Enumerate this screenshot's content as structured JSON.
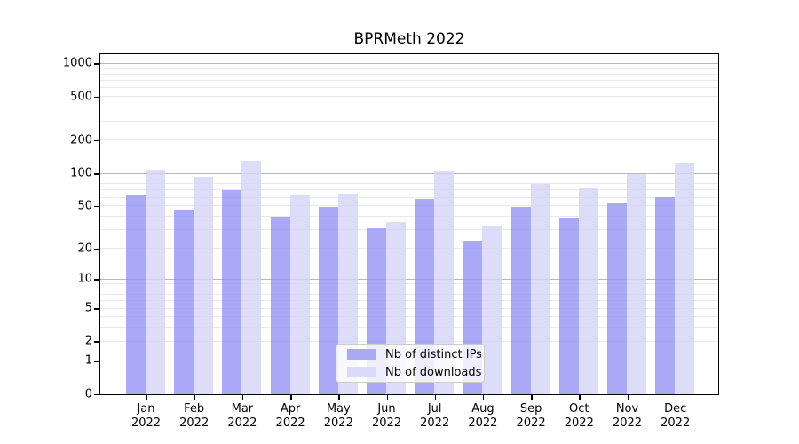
{
  "chart_data": {
    "type": "bar",
    "title": "BPRMeth 2022",
    "months": [
      "Jan",
      "Feb",
      "Mar",
      "Apr",
      "May",
      "Jun",
      "Jul",
      "Aug",
      "Sep",
      "Oct",
      "Nov",
      "Dec"
    ],
    "year_label": "2022",
    "categories": [
      "Jan 2022",
      "Feb 2022",
      "Mar 2022",
      "Apr 2022",
      "May 2022",
      "Jun 2022",
      "Jul 2022",
      "Aug 2022",
      "Sep 2022",
      "Oct 2022",
      "Nov 2022",
      "Dec 2022"
    ],
    "series": [
      {
        "name": "Nb of distinct IPs",
        "color": "rgba(148,148,245,0.8)",
        "legend_color": "#a9a9f6",
        "values": [
          63,
          47,
          71,
          40,
          49,
          31,
          58,
          24,
          49,
          39,
          53,
          61
        ]
      },
      {
        "name": "Nb of downloads",
        "color": "rgba(213,213,249,0.8)",
        "legend_color": "#dcdcfa",
        "values": [
          107,
          93,
          132,
          63,
          66,
          36,
          104,
          33,
          81,
          73,
          99,
          124
        ]
      }
    ],
    "xlabel": "",
    "ylabel": "",
    "y_axis": {
      "scale": "log10(value+1)",
      "ticks": [
        0,
        1,
        2,
        5,
        10,
        20,
        50,
        100,
        200,
        500,
        1000
      ],
      "major_gridlines": [
        1,
        10,
        100,
        1000
      ],
      "minor_gridlines": [
        2,
        3,
        4,
        5,
        6,
        7,
        8,
        9,
        20,
        30,
        40,
        50,
        60,
        70,
        80,
        90,
        200,
        300,
        400,
        500,
        600,
        700,
        800,
        900
      ],
      "range_top_approx": 1270
    },
    "grid": "on",
    "legend_position": "bottom-center"
  },
  "colors": {
    "background": "#ffffff",
    "axis": "#000000",
    "major_gridline": "#b8b8b8",
    "minor_gridline": "#e9e9e9",
    "text": "#000000"
  }
}
